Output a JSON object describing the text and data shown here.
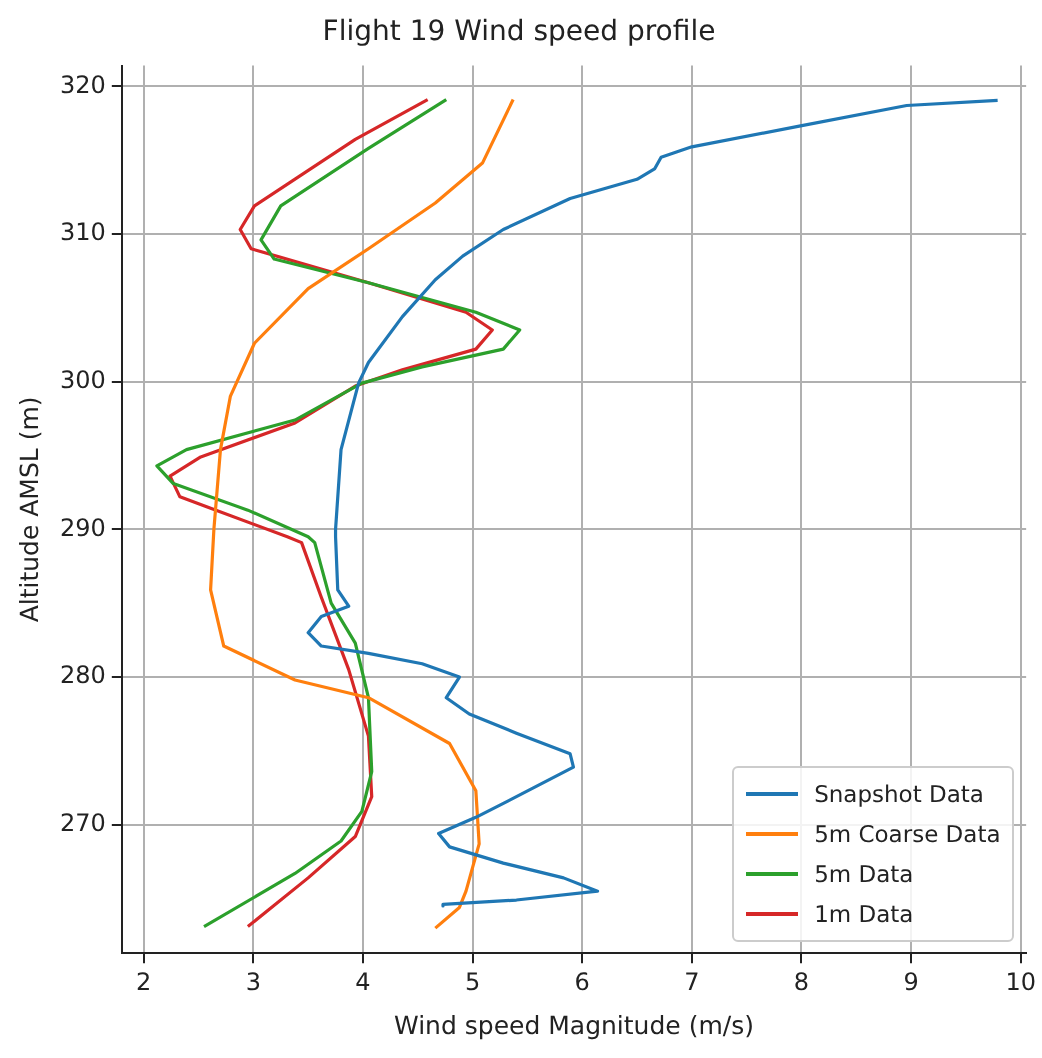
{
  "chart_data": {
    "type": "line",
    "title": "Flight 19 Wind speed profile",
    "xlabel": "Wind speed Magnitude (m/s)",
    "ylabel": "Altitude AMSL (m)",
    "xlim": [
      1.8,
      10.05
    ],
    "xticks": [
      2,
      3,
      4,
      5,
      6,
      7,
      8,
      9,
      10
    ],
    "ylim": [
      261.3,
      321.4
    ],
    "yticks": [
      270,
      280,
      290,
      300,
      310,
      320
    ],
    "grid": true,
    "legend": "bottom right",
    "marker": "none",
    "line_style": "solid",
    "series": [
      {
        "name": "Snapshot Data",
        "color": "#1f77b4",
        "x": [
          9.79,
          8.96,
          7.98,
          7.0,
          6.72,
          6.66,
          6.5,
          5.89,
          5.28,
          4.91,
          4.66,
          4.36,
          4.05,
          3.96,
          3.8,
          3.75,
          3.75,
          3.77,
          3.87,
          3.62,
          3.5,
          3.62,
          4.05,
          4.54,
          4.88,
          4.76,
          4.97,
          5.4,
          5.89,
          5.92,
          5.4,
          5.03,
          4.69,
          4.79,
          5.28,
          5.83,
          6.14,
          5.4,
          4.73,
          4.73
        ],
        "values": [
          319.05,
          318.7,
          317.3,
          315.9,
          315.2,
          314.4,
          313.7,
          312.4,
          310.3,
          308.5,
          306.9,
          304.4,
          301.3,
          299.9,
          295.4,
          290.0,
          289.5,
          285.9,
          284.8,
          284.1,
          283.0,
          282.1,
          281.6,
          280.9,
          280.0,
          278.6,
          277.5,
          276.2,
          274.8,
          273.9,
          271.9,
          270.5,
          269.4,
          268.5,
          267.4,
          266.4,
          265.5,
          264.9,
          264.6,
          264.5
        ]
      },
      {
        "name": "5m Coarse Data",
        "color": "#ff7f0e",
        "x": [
          5.37,
          5.09,
          4.66,
          4.05,
          3.5,
          3.01,
          2.79,
          2.7,
          2.64,
          2.61,
          2.73,
          3.38,
          4.05,
          4.79,
          5.03,
          5.06,
          4.94,
          4.88,
          4.66
        ],
        "values": [
          319.1,
          314.8,
          312.1,
          309.0,
          306.3,
          302.6,
          299.0,
          295.4,
          290.0,
          285.9,
          282.1,
          279.8,
          278.6,
          275.5,
          272.3,
          268.7,
          265.5,
          264.4,
          263.0
        ]
      },
      {
        "name": "5m Data",
        "color": "#2ca02c",
        "x": [
          4.76,
          4.05,
          3.25,
          3.07,
          3.19,
          4.05,
          5.03,
          5.43,
          5.28,
          4.54,
          3.99,
          3.38,
          2.39,
          2.12,
          2.27,
          2.95,
          3.5,
          3.56,
          3.71,
          3.93,
          4.05,
          4.08,
          3.99,
          3.8,
          3.38,
          2.55
        ],
        "values": [
          319.1,
          315.8,
          311.9,
          309.6,
          308.3,
          306.7,
          304.7,
          303.5,
          302.2,
          301.0,
          299.9,
          297.4,
          295.4,
          294.3,
          293.1,
          291.3,
          289.5,
          289.1,
          285.0,
          282.3,
          278.6,
          273.6,
          270.9,
          268.9,
          266.7,
          263.1
        ]
      },
      {
        "name": "1m Data",
        "color": "#d62728",
        "x": [
          4.59,
          3.93,
          3.01,
          2.88,
          2.98,
          4.05,
          4.94,
          5.18,
          5.03,
          4.36,
          3.93,
          3.38,
          2.52,
          2.24,
          2.33,
          3.31,
          3.44,
          3.62,
          3.87,
          4.05,
          4.08,
          3.93,
          3.5,
          2.95
        ],
        "values": [
          319.1,
          316.4,
          311.9,
          310.3,
          309.0,
          306.7,
          304.7,
          303.5,
          302.2,
          300.8,
          299.7,
          297.2,
          294.9,
          293.6,
          292.2,
          289.5,
          289.1,
          285.4,
          280.5,
          276.0,
          271.9,
          269.2,
          266.4,
          263.1
        ]
      }
    ]
  }
}
